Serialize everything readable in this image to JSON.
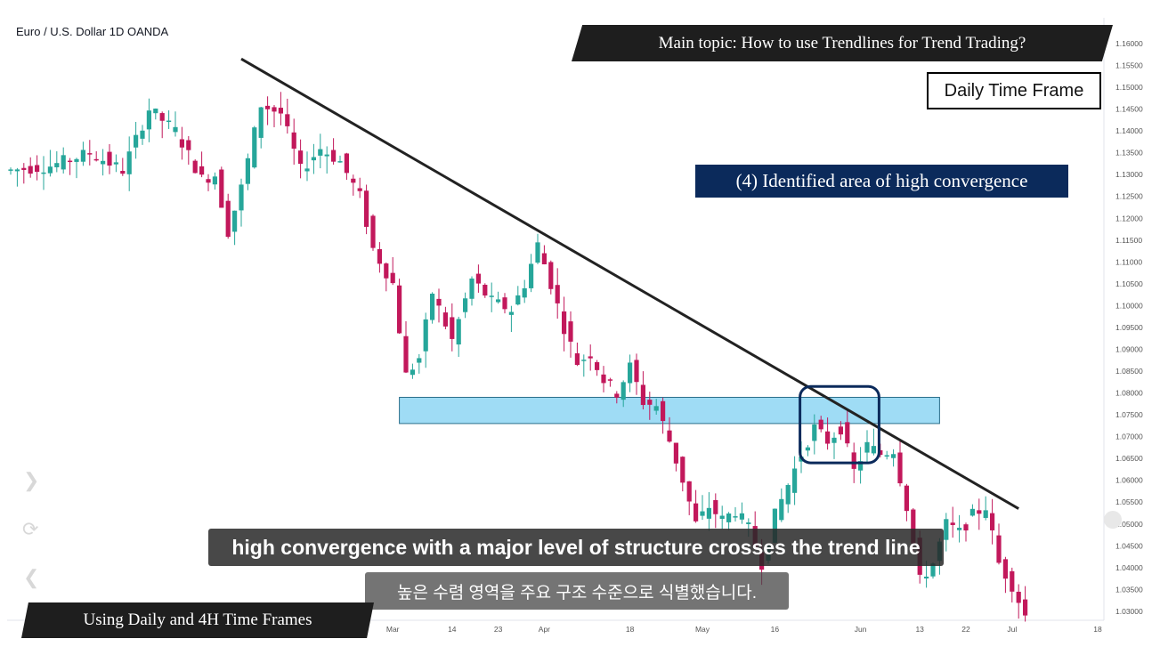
{
  "header": {
    "symbol": "Euro / U.S. Dollar  1D  OANDA",
    "main_topic": "Main topic: How to use Trendlines for Trend Trading?",
    "time_frame": "Daily Time Frame",
    "callout": "(4) Identified area of high convergence",
    "bottom_banner": "Using Daily and 4H Time Frames"
  },
  "subtitles": {
    "english": "high convergence with a major level of structure crosses the trend line",
    "korean": "높은 수렴 영역을 주요 구조 수준으로 식별했습니다."
  },
  "colors": {
    "up": "#26a69a",
    "down": "#c2185b",
    "trendline": "#222222",
    "zone_fill": "#9fdcf5",
    "zone_border": "#2a6e8a",
    "highlight": "#0b2a5b"
  },
  "chart_data": {
    "type": "candlestick",
    "title": "Euro / U.S. Dollar  1D  OANDA",
    "ylim": [
      1.0275,
      1.1625
    ],
    "y_ticks": [
      "1.16000",
      "1.15500",
      "1.15000",
      "1.14500",
      "1.14000",
      "1.13500",
      "1.13000",
      "1.12500",
      "1.12000",
      "1.11500",
      "1.11000",
      "1.10500",
      "1.10000",
      "1.09500",
      "1.09000",
      "1.08500",
      "1.08000",
      "1.07500",
      "1.07000",
      "1.06500",
      "1.06000",
      "1.05500",
      "1.05000",
      "1.04500",
      "1.04000",
      "1.03500",
      "1.03000"
    ],
    "x_ticks": [
      {
        "label": "Mar",
        "index": 58
      },
      {
        "label": "14",
        "index": 67
      },
      {
        "label": "23",
        "index": 74
      },
      {
        "label": "Apr",
        "index": 81
      },
      {
        "label": "18",
        "index": 94
      },
      {
        "label": "May",
        "index": 105
      },
      {
        "label": "16",
        "index": 116
      },
      {
        "label": "Jun",
        "index": 129
      },
      {
        "label": "13",
        "index": 138
      },
      {
        "label": "22",
        "index": 145
      },
      {
        "label": "Jul",
        "index": 152
      },
      {
        "label": "18",
        "index": 165
      }
    ],
    "price_range": [
      1.029,
      1.148
    ],
    "trendline": {
      "from": {
        "index": 35,
        "price": 1.1565
      },
      "to": {
        "index": 153,
        "price": 1.0535
      }
    },
    "structure_zone": {
      "from_index": 59,
      "to_index": 141,
      "low": 1.073,
      "high": 1.079
    },
    "highlight_box": {
      "from_index": 119,
      "to_index": 131,
      "low": 1.064,
      "high": 1.0815
    }
  }
}
